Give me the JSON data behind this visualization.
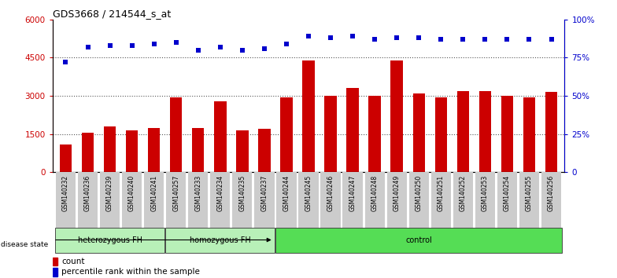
{
  "title": "GDS3668 / 214544_s_at",
  "samples": [
    "GSM140232",
    "GSM140236",
    "GSM140239",
    "GSM140240",
    "GSM140241",
    "GSM140257",
    "GSM140233",
    "GSM140234",
    "GSM140235",
    "GSM140237",
    "GSM140244",
    "GSM140245",
    "GSM140246",
    "GSM140247",
    "GSM140248",
    "GSM140249",
    "GSM140250",
    "GSM140251",
    "GSM140252",
    "GSM140253",
    "GSM140254",
    "GSM140255",
    "GSM140256"
  ],
  "counts": [
    1100,
    1550,
    1800,
    1650,
    1750,
    2950,
    1750,
    2800,
    1650,
    1700,
    2950,
    4400,
    3000,
    3300,
    3000,
    4400,
    3100,
    2950,
    3200,
    3200,
    3000,
    2950,
    3150
  ],
  "percentiles": [
    72,
    82,
    83,
    83,
    84,
    85,
    80,
    82,
    80,
    81,
    84,
    89,
    88,
    89,
    87,
    88,
    88,
    87,
    87,
    87,
    87,
    87,
    87
  ],
  "group_defs": [
    {
      "start": 0,
      "end": 5,
      "label": "heterozygous FH",
      "color": "#b8f0b8"
    },
    {
      "start": 5,
      "end": 10,
      "label": "homozygous FH",
      "color": "#b8f0b8"
    },
    {
      "start": 10,
      "end": 23,
      "label": "control",
      "color": "#55dd55"
    }
  ],
  "bar_color": "#CC0000",
  "dot_color": "#0000CC",
  "ylim_left": [
    0,
    6000
  ],
  "ylim_right": [
    0,
    100
  ],
  "yticks_left": [
    0,
    1500,
    3000,
    4500,
    6000
  ],
  "yticks_right": [
    0,
    25,
    50,
    75,
    100
  ],
  "bg_color": "#ffffff",
  "dotted_line_color": "#555555",
  "legend_count_color": "#CC0000",
  "legend_pct_color": "#0000CC",
  "xtick_bg_color": "#cccccc"
}
